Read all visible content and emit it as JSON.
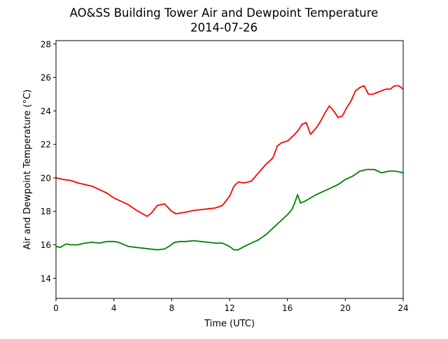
{
  "chart_data": {
    "type": "line",
    "title": "AO&SS Building Tower Air and Dewpoint Temperature",
    "subtitle": "2014-07-26",
    "xlabel": "Time (UTC)",
    "ylabel": "Air and Dewpoint Temperature (°C)",
    "xlim": [
      0,
      24
    ],
    "ylim": [
      12.8,
      28.2
    ],
    "xticks": [
      0,
      4,
      8,
      12,
      16,
      20,
      24
    ],
    "yticks": [
      14,
      16,
      18,
      20,
      22,
      24,
      26,
      28
    ],
    "grid": false,
    "legend": "none",
    "series": [
      {
        "color": "#ff0000",
        "x": [
          0,
          0.5,
          1,
          1.5,
          2,
          2.5,
          3,
          3.5,
          4,
          4.5,
          5,
          5.5,
          6,
          6.3,
          6.6,
          7,
          7.5,
          8,
          8.3,
          8.6,
          9,
          9.5,
          10,
          10.5,
          11,
          11.5,
          12,
          12.3,
          12.6,
          13,
          13.5,
          14,
          14.5,
          15,
          15.3,
          15.6,
          16,
          16.5,
          16.8,
          17,
          17.3,
          17.6,
          18,
          18.3,
          18.6,
          18.9,
          19.2,
          19.5,
          19.8,
          20.1,
          20.4,
          20.7,
          21,
          21.3,
          21.6,
          21.9,
          22.2,
          22.5,
          22.8,
          23.1,
          23.4,
          23.7,
          24
        ],
        "values": [
          20.0,
          19.9,
          19.85,
          19.7,
          19.6,
          19.5,
          19.3,
          19.1,
          18.8,
          18.6,
          18.4,
          18.1,
          17.85,
          17.7,
          17.9,
          18.35,
          18.45,
          18.0,
          17.85,
          17.9,
          17.95,
          18.05,
          18.1,
          18.15,
          18.2,
          18.35,
          18.9,
          19.5,
          19.75,
          19.7,
          19.8,
          20.3,
          20.8,
          21.2,
          21.9,
          22.1,
          22.2,
          22.6,
          22.9,
          23.2,
          23.3,
          22.6,
          23.0,
          23.4,
          23.9,
          24.3,
          24.0,
          23.6,
          23.7,
          24.2,
          24.6,
          25.2,
          25.4,
          25.5,
          25.0,
          25.0,
          25.1,
          25.2,
          25.3,
          25.3,
          25.5,
          25.5,
          25.3
        ]
      },
      {
        "color": "#008000",
        "x": [
          0,
          0.3,
          0.7,
          1,
          1.5,
          2,
          2.5,
          3,
          3.5,
          4,
          4.3,
          4.6,
          5,
          5.5,
          6,
          6.5,
          7,
          7.5,
          7.8,
          8.2,
          8.6,
          9,
          9.5,
          10,
          10.5,
          11,
          11.5,
          12,
          12.3,
          12.6,
          13,
          13.5,
          14,
          14.5,
          15,
          15.5,
          16,
          16.3,
          16.5,
          16.7,
          16.9,
          17.2,
          17.6,
          18,
          18.5,
          19,
          19.5,
          20,
          20.5,
          21,
          21.5,
          22,
          22.5,
          23,
          23.5,
          24
        ],
        "values": [
          15.9,
          15.85,
          16.05,
          16.0,
          16.0,
          16.1,
          16.15,
          16.1,
          16.2,
          16.2,
          16.15,
          16.05,
          15.9,
          15.85,
          15.8,
          15.75,
          15.7,
          15.75,
          15.9,
          16.15,
          16.2,
          16.2,
          16.25,
          16.2,
          16.15,
          16.1,
          16.1,
          15.9,
          15.7,
          15.7,
          15.9,
          16.1,
          16.3,
          16.6,
          17.0,
          17.4,
          17.8,
          18.1,
          18.5,
          19.0,
          18.5,
          18.6,
          18.8,
          19.0,
          19.2,
          19.4,
          19.6,
          19.9,
          20.1,
          20.4,
          20.5,
          20.5,
          20.3,
          20.4,
          20.4,
          20.3
        ]
      }
    ]
  }
}
